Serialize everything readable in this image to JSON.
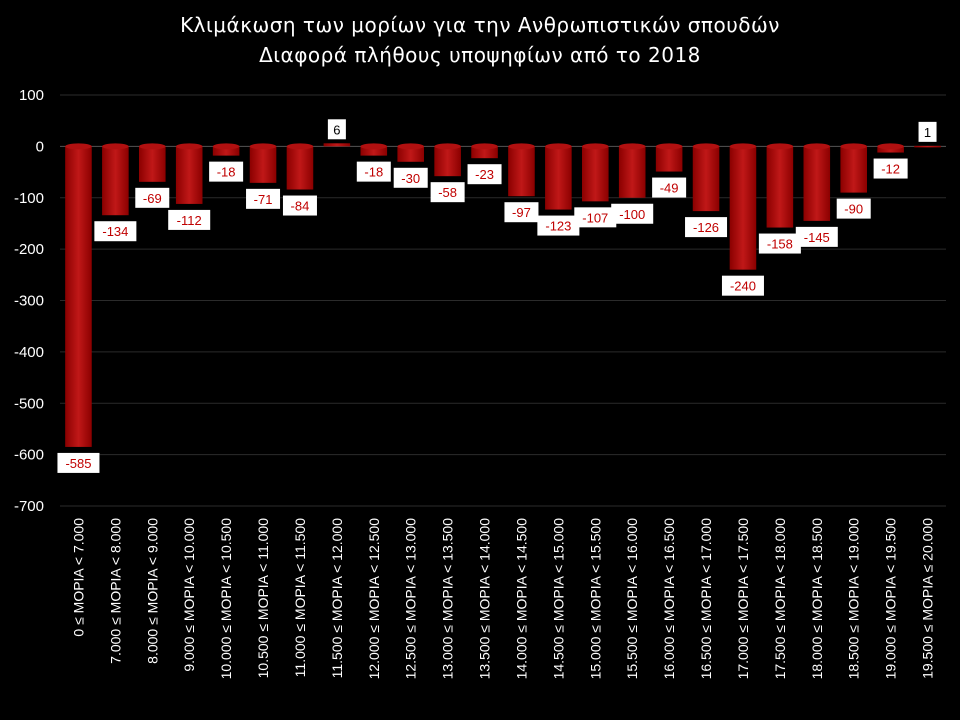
{
  "chart_data": {
    "type": "bar",
    "title": "Κλιμάκωση των μορίων για την Ανθρωπιστικών  σπουδών",
    "subtitle": "Διαφορά πλήθους υποψηφίων από το 2018",
    "xlabel": "",
    "ylabel": "",
    "ylim": [
      -700,
      100
    ],
    "yticks": [
      100,
      0,
      -100,
      -200,
      -300,
      -400,
      -500,
      -600,
      -700
    ],
    "grid": true,
    "legend": "none",
    "categories": [
      "0 ≤ ΜΟΡΙΑ < 7.000",
      "7.000 ≤ ΜΟΡΙΑ < 8.000",
      "8.000 ≤ ΜΟΡΙΑ < 9.000",
      "9.000 ≤ ΜΟΡΙΑ < 10.000",
      "10.000 ≤ ΜΟΡΙΑ < 10.500",
      "10.500 ≤ ΜΟΡΙΑ < 11.000",
      "11.000 ≤ ΜΟΡΙΑ < 11.500",
      "11.500 ≤ ΜΟΡΙΑ < 12.000",
      "12.000 ≤ ΜΟΡΙΑ < 12.500",
      "12.500 ≤ ΜΟΡΙΑ < 13.000",
      "13.000 ≤ ΜΟΡΙΑ < 13.500",
      "13.500 ≤ ΜΟΡΙΑ < 14.000",
      "14.000 ≤ ΜΟΡΙΑ < 14.500",
      "14.500 ≤ ΜΟΡΙΑ < 15.000",
      "15.000 ≤ ΜΟΡΙΑ < 15.500",
      "15.500 ≤ ΜΟΡΙΑ < 16.000",
      "16.000 ≤ ΜΟΡΙΑ < 16.500",
      "16.500 ≤ ΜΟΡΙΑ < 17.000",
      "17.000 ≤ ΜΟΡΙΑ < 17.500",
      "17.500 ≤ ΜΟΡΙΑ < 18.000",
      "18.000 ≤ ΜΟΡΙΑ < 18.500",
      "18.500 ≤ ΜΟΡΙΑ < 19.000",
      "19.000 ≤ ΜΟΡΙΑ < 19.500",
      "19.500 ≤ ΜΟΡΙΑ ≤ 20.000"
    ],
    "values": [
      -585,
      -134,
      -69,
      -112,
      -18,
      -71,
      -84,
      6,
      -18,
      -30,
      -58,
      -23,
      -97,
      -123,
      -107,
      -100,
      -49,
      -126,
      -240,
      -158,
      -145,
      -90,
      -12,
      1
    ],
    "colors": {
      "bar": "#8b0000",
      "bar_highlight": "#c01818",
      "negative_label": "#c00000",
      "positive_label": "#000000",
      "grid": "#2b2b2b",
      "text": "#ffffff"
    }
  }
}
